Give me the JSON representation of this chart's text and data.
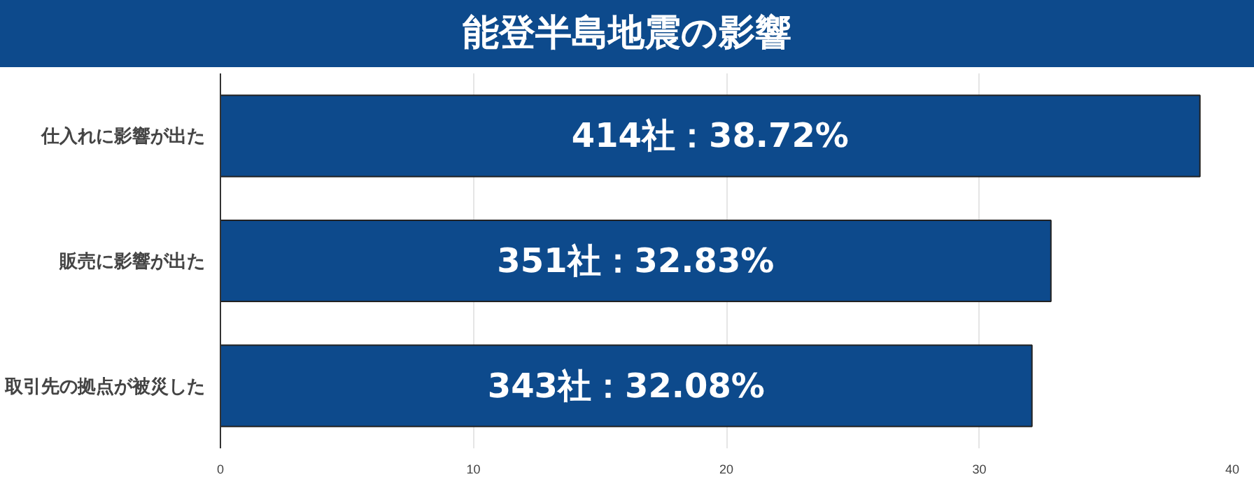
{
  "chart_data": {
    "type": "bar",
    "title": "能登半島地震の影響",
    "orientation": "horizontal",
    "categories": [
      "仕入れに影響が出た",
      "販売に影響が出た",
      "取引先の拠点が被災した"
    ],
    "values": [
      38.72,
      32.83,
      32.08
    ],
    "value_labels": [
      "414社：38.72%",
      "351社：32.83%",
      "343社：32.08%"
    ],
    "color": "#0d4a8c",
    "xlim": [
      0,
      40
    ],
    "xticks": [
      0,
      10,
      20,
      30,
      40
    ],
    "grid": "x"
  }
}
